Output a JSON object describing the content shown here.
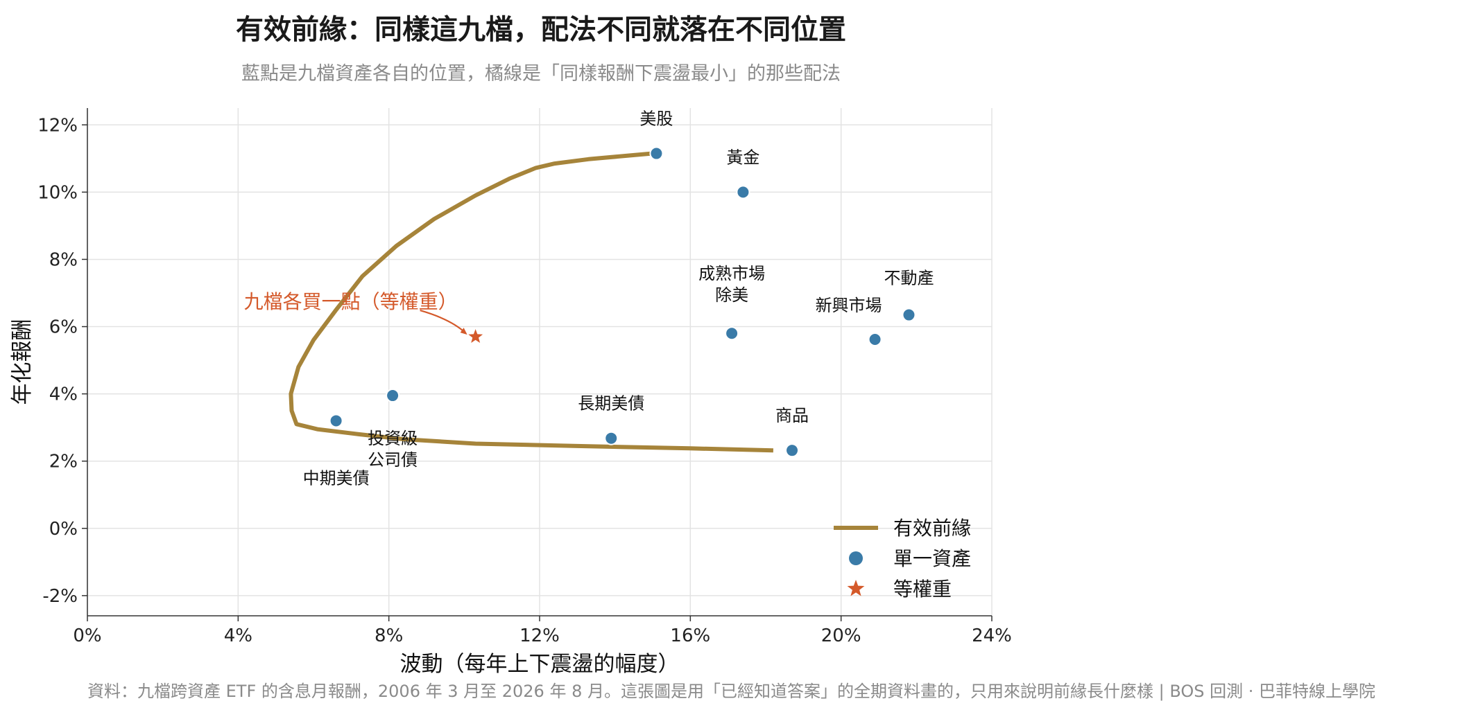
{
  "header": {
    "title": "有效前緣：同樣這九檔，配法不同就落在不同位置",
    "subtitle": "藍點是九檔資產各自的位置，橘線是「同樣報酬下震盪最小」的那些配法"
  },
  "footer": {
    "source": "資料：九檔跨資產 ETF 的含息月報酬，2006 年 3 月至 2026 年 8 月。這張圖是用「已經知道答案」的全期資料畫的，只用來說明前緣長什麼樣 | BOS 回測 ·   巴菲特線上學院"
  },
  "colors": {
    "frontier": "#a6843a",
    "asset": "#3a7ba8",
    "equal_weight": "#d4592a",
    "grid": "#e3e3e3"
  },
  "chart_data": {
    "type": "scatter",
    "xlabel": "波動（每年上下震盪的幅度）",
    "ylabel": "年化報酬",
    "xlim": [
      0,
      24
    ],
    "ylim": [
      -2.6,
      12.5
    ],
    "xticks": [
      0,
      4,
      8,
      12,
      16,
      20,
      24
    ],
    "yticks": [
      -2,
      0,
      2,
      4,
      6,
      8,
      10,
      12
    ],
    "xtick_labels": [
      "0%",
      "4%",
      "8%",
      "12%",
      "16%",
      "20%",
      "24%"
    ],
    "ytick_labels": [
      "-2%",
      "0%",
      "2%",
      "4%",
      "6%",
      "8%",
      "10%",
      "12%"
    ],
    "grid": true,
    "legend_position": "bottom-right",
    "legend": [
      {
        "marker": "line",
        "label": "有效前緣"
      },
      {
        "marker": "circle",
        "label": "單一資產"
      },
      {
        "marker": "star",
        "label": "等權重"
      }
    ],
    "frontier": {
      "name": "有效前緣",
      "x": [
        18.2,
        16,
        13,
        10.3,
        8.4,
        7.2,
        6.1,
        5.55,
        5.42,
        5.4,
        5.6,
        6.0,
        6.6,
        7.3,
        8.2,
        9.2,
        10.3,
        11.2,
        11.9,
        12.4,
        13.3,
        14.3,
        15.0
      ],
      "y": [
        2.32,
        2.38,
        2.45,
        2.52,
        2.65,
        2.8,
        2.95,
        3.1,
        3.5,
        4.0,
        4.8,
        5.6,
        6.5,
        7.5,
        8.4,
        9.2,
        9.9,
        10.4,
        10.72,
        10.85,
        10.98,
        11.08,
        11.15
      ]
    },
    "assets": [
      {
        "name": "美股",
        "x": 15.1,
        "y": 11.15
      },
      {
        "name": "黃金",
        "x": 17.4,
        "y": 10.0
      },
      {
        "name": "成熟市場\n除美",
        "x": 17.1,
        "y": 5.8
      },
      {
        "name": "不動產",
        "x": 21.8,
        "y": 6.35
      },
      {
        "name": "新興市場",
        "x": 20.9,
        "y": 5.62
      },
      {
        "name": "長期美債",
        "x": 13.9,
        "y": 2.68
      },
      {
        "name": "商品",
        "x": 18.7,
        "y": 2.32
      },
      {
        "name": "投資級\n公司債",
        "x": 8.1,
        "y": 3.95
      },
      {
        "name": "中期美債",
        "x": 6.6,
        "y": 3.2
      }
    ],
    "equal_weight": {
      "label": "九檔各買一點（等權重）",
      "x": 10.3,
      "y": 5.7
    }
  }
}
